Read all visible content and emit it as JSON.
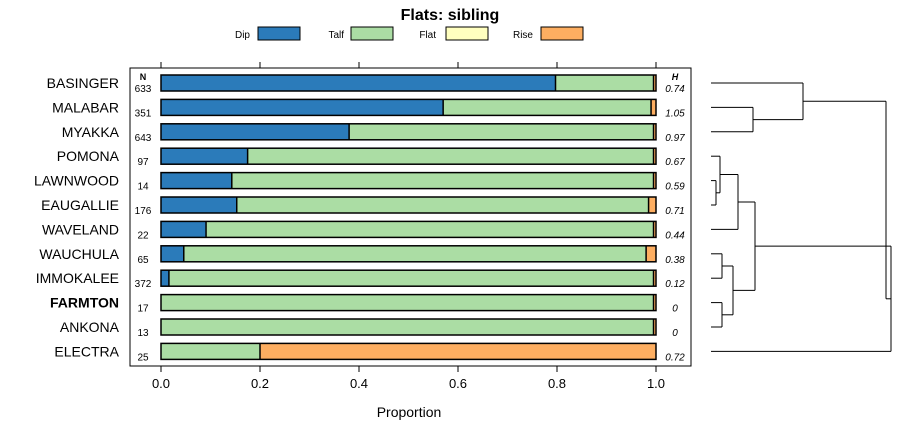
{
  "chart_data": {
    "type": "bar",
    "stacked": true,
    "orientation": "horizontal",
    "title": "Flats: sibling",
    "xlabel": "Proportion",
    "xlim": [
      0,
      1
    ],
    "xticks": [
      "0.0",
      "0.2",
      "0.4",
      "0.6",
      "0.8",
      "1.0"
    ],
    "xtick_values": [
      0,
      0.2,
      0.4,
      0.6,
      0.8,
      1.0
    ],
    "n_header": "N",
    "h_header": "H",
    "highlighted_category": "FARMTON",
    "legend": [
      {
        "name": "Dip",
        "color": "#2b7bba"
      },
      {
        "name": "Talf",
        "color": "#abdda4"
      },
      {
        "name": "Flat",
        "color": "#ffffbf"
      },
      {
        "name": "Rise",
        "color": "#fdae61"
      }
    ],
    "categories": [
      "BASINGER",
      "MALABAR",
      "MYAKKA",
      "POMONA",
      "LAWNWOOD",
      "EAUGALLIE",
      "WAVELAND",
      "WAUCHULA",
      "IMMOKALEE",
      "FARMTON",
      "ANKONA",
      "ELECTRA"
    ],
    "n": [
      "633",
      "351",
      "643",
      "97",
      "14",
      "176",
      "22",
      "65",
      "372",
      "17",
      "13",
      "25"
    ],
    "h": [
      "0.74",
      "1.05",
      "0.97",
      "0.67",
      "0.59",
      "0.71",
      "0.44",
      "0.38",
      "0.12",
      "0",
      "0",
      "0.72"
    ],
    "series": [
      {
        "name": "Dip",
        "values": [
          0.797,
          0.57,
          0.38,
          0.175,
          0.143,
          0.153,
          0.091,
          0.046,
          0.016,
          0,
          0,
          0
        ]
      },
      {
        "name": "Talf",
        "values": [
          0.198,
          0.42,
          0.615,
          0.82,
          0.852,
          0.832,
          0.904,
          0.934,
          0.979,
          0.995,
          0.995,
          0.2
        ]
      },
      {
        "name": "Flat",
        "values": [
          0,
          0,
          0,
          0,
          0,
          0,
          0,
          0,
          0,
          0,
          0,
          0
        ]
      },
      {
        "name": "Rise",
        "values": [
          0.005,
          0.01,
          0.005,
          0.005,
          0.005,
          0.015,
          0.005,
          0.02,
          0.005,
          0.005,
          0.005,
          0.8
        ]
      }
    ],
    "dendrogram": {
      "description": "hierarchical clustering tree of categories",
      "merges": [
        {
          "left": "LAWNWOOD",
          "right": "EAUGALLIE",
          "height": 0.02
        },
        {
          "left": "POMONA",
          "right": "LAWNWOOD+EAUGALLIE",
          "height": 0.04
        },
        {
          "left": "FARMTON",
          "right": "ANKONA",
          "height": 0.07
        },
        {
          "left": "WAUCHULA",
          "right": "IMMOKALEE",
          "height": 0.07
        },
        {
          "left": "POMONA+LAWNWOOD+EAUGALLIE",
          "right": "WAVELAND",
          "height": 0.15
        },
        {
          "left": "WAUCHULA+IMMOKALEE",
          "right": "FARMTON+ANKONA",
          "height": 0.12
        },
        {
          "left": "MALABAR",
          "right": "MYAKKA",
          "height": 0.22
        },
        {
          "left": "POMONA..WAVELAND",
          "right": "WAUCHULA..ANKONA",
          "height": 0.45
        },
        {
          "left": "BASINGER",
          "right": "MALABAR+MYAKKA",
          "height": 0.52
        },
        {
          "left": "POMONA..ANKONA",
          "right": "ELECTRA",
          "height": 1.0
        },
        {
          "left": "BASINGER..MYAKKA",
          "right": "POMONA..ELECTRA",
          "height": 0.95
        }
      ]
    }
  }
}
